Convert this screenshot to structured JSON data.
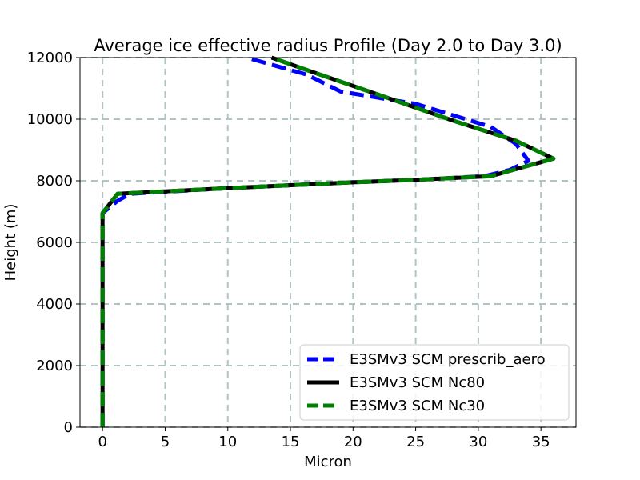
{
  "chart_data": {
    "type": "line",
    "title": "Average ice effective radius Profile (Day 2.0 to Day 3.0)",
    "xlabel": "Micron",
    "ylabel": "Height (m)",
    "xlim": [
      -1.8,
      37.8
    ],
    "ylim": [
      0,
      12000
    ],
    "xticks": [
      0,
      5,
      10,
      15,
      20,
      25,
      30,
      35
    ],
    "yticks": [
      0,
      2000,
      4000,
      6000,
      8000,
      10000,
      12000
    ],
    "grid": true,
    "legend_position": "lower-right",
    "series": [
      {
        "name": "E3SMv3 SCM prescrib_aero",
        "color": "#0000ff",
        "style": "dashed",
        "points": [
          [
            0,
            0
          ],
          [
            0,
            2000
          ],
          [
            0,
            4000
          ],
          [
            0,
            6000
          ],
          [
            0,
            6950
          ],
          [
            1.2,
            7350
          ],
          [
            2.2,
            7580
          ],
          [
            10,
            7760
          ],
          [
            20,
            7950
          ],
          [
            25,
            8030
          ],
          [
            30.5,
            8150
          ],
          [
            32.5,
            8350
          ],
          [
            34,
            8650
          ],
          [
            33,
            9200
          ],
          [
            31,
            9750
          ],
          [
            25,
            10500
          ],
          [
            19,
            10900
          ],
          [
            16.3,
            11450
          ],
          [
            11.5,
            12000
          ]
        ]
      },
      {
        "name": "E3SMv3 SCM Nc80",
        "color": "#000000",
        "style": "solid",
        "points": [
          [
            0,
            0
          ],
          [
            0,
            2000
          ],
          [
            0,
            4000
          ],
          [
            0,
            6000
          ],
          [
            0,
            6950
          ],
          [
            1.2,
            7580
          ],
          [
            10,
            7760
          ],
          [
            20,
            7950
          ],
          [
            25,
            8030
          ],
          [
            31,
            8150
          ],
          [
            36,
            8720
          ],
          [
            33,
            9300
          ],
          [
            28,
            9950
          ],
          [
            22,
            10800
          ],
          [
            17,
            11500
          ],
          [
            13.5,
            12000
          ]
        ]
      },
      {
        "name": "E3SMv3 SCM Nc30",
        "color": "#008000",
        "style": "dashed",
        "points": [
          [
            0,
            0
          ],
          [
            0,
            2000
          ],
          [
            0,
            4000
          ],
          [
            0,
            6000
          ],
          [
            0,
            6950
          ],
          [
            1.2,
            7580
          ],
          [
            10,
            7760
          ],
          [
            20,
            7950
          ],
          [
            25,
            8030
          ],
          [
            31,
            8150
          ],
          [
            36,
            8720
          ],
          [
            33,
            9300
          ],
          [
            28,
            9950
          ],
          [
            22,
            10800
          ],
          [
            17,
            11500
          ],
          [
            13.5,
            12000
          ]
        ]
      }
    ]
  }
}
